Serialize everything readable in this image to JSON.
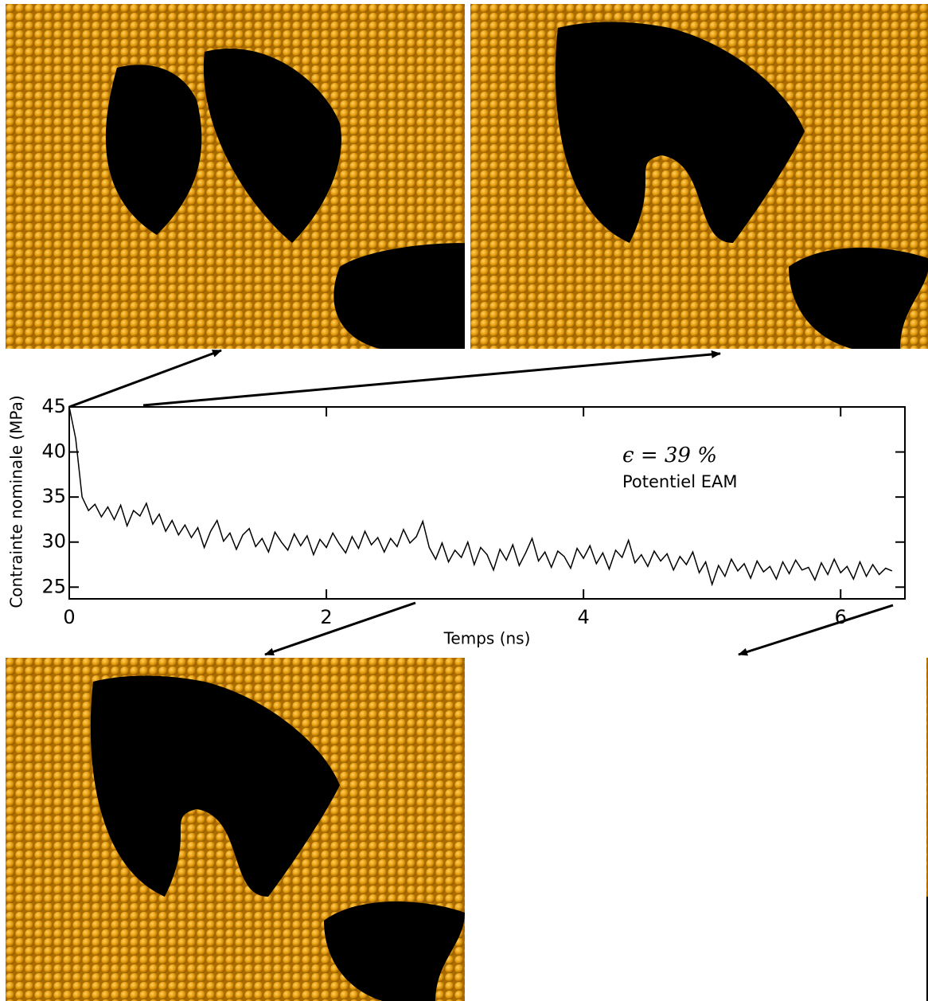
{
  "chart_data": {
    "type": "line",
    "x_label": "Temps (ns)",
    "y_label": "Contrainte nominale (MPa)",
    "annotations": [
      "ϵ = 39 %",
      "Potentiel EAM"
    ],
    "color": "#000000",
    "xlim": [
      0,
      6.5
    ],
    "xticks": [
      0,
      2,
      4,
      6
    ],
    "ylim": [
      23.7,
      45
    ],
    "yticks": [
      25,
      30,
      35,
      40,
      45
    ],
    "x": [
      0,
      0.05,
      0.1,
      0.15,
      0.2,
      0.25,
      0.3,
      0.35,
      0.4,
      0.45,
      0.5,
      0.55,
      0.6,
      0.65,
      0.7,
      0.75,
      0.8,
      0.85,
      0.9,
      0.95,
      1,
      1.05,
      1.1,
      1.15,
      1.2,
      1.25,
      1.3,
      1.35,
      1.4,
      1.45,
      1.5,
      1.55,
      1.6,
      1.65,
      1.7,
      1.75,
      1.8,
      1.85,
      1.9,
      1.95,
      2,
      2.05,
      2.1,
      2.15,
      2.2,
      2.25,
      2.3,
      2.35,
      2.4,
      2.45,
      2.5,
      2.55,
      2.6,
      2.65,
      2.7,
      2.75,
      2.8,
      2.85,
      2.9,
      2.95,
      3,
      3.05,
      3.1,
      3.15,
      3.2,
      3.25,
      3.3,
      3.35,
      3.4,
      3.45,
      3.5,
      3.55,
      3.6,
      3.65,
      3.7,
      3.75,
      3.8,
      3.85,
      3.9,
      3.95,
      4,
      4.05,
      4.1,
      4.15,
      4.2,
      4.25,
      4.3,
      4.35,
      4.4,
      4.45,
      4.5,
      4.55,
      4.6,
      4.65,
      4.7,
      4.75,
      4.8,
      4.85,
      4.9,
      4.95,
      5,
      5.05,
      5.1,
      5.15,
      5.2,
      5.25,
      5.3,
      5.35,
      5.4,
      5.45,
      5.5,
      5.55,
      5.6,
      5.65,
      5.7,
      5.75,
      5.8,
      5.85,
      5.9,
      5.95,
      6,
      6.05,
      6.1,
      6.15,
      6.2,
      6.25,
      6.3,
      6.35,
      6.4
    ],
    "values": [
      45.0,
      41.5,
      35.0,
      33.5,
      34.2,
      32.8,
      33.9,
      32.5,
      34.1,
      31.8,
      33.5,
      32.9,
      34.3,
      32.0,
      33.1,
      31.2,
      32.4,
      30.8,
      31.9,
      30.5,
      31.6,
      29.4,
      31.2,
      32.4,
      30.1,
      31.0,
      29.2,
      30.8,
      31.5,
      29.5,
      30.4,
      28.9,
      31.1,
      30.0,
      29.1,
      30.9,
      29.6,
      30.7,
      28.6,
      30.3,
      29.4,
      31.0,
      29.8,
      28.8,
      30.6,
      29.3,
      31.2,
      29.7,
      30.5,
      28.9,
      30.4,
      29.5,
      31.4,
      29.9,
      30.6,
      32.3,
      29.4,
      28.1,
      29.9,
      27.8,
      29.1,
      28.3,
      30.0,
      27.5,
      29.4,
      28.6,
      26.9,
      29.2,
      28.0,
      29.7,
      27.4,
      28.8,
      30.4,
      27.9,
      28.9,
      27.2,
      29.0,
      28.4,
      27.1,
      29.3,
      28.2,
      29.6,
      27.6,
      28.8,
      27.0,
      29.1,
      28.3,
      30.2,
      27.7,
      28.6,
      27.3,
      29.0,
      27.9,
      28.7,
      26.9,
      28.4,
      27.5,
      28.9,
      26.6,
      27.8,
      25.3,
      27.4,
      26.2,
      28.1,
      26.8,
      27.6,
      26.0,
      27.9,
      26.7,
      27.3,
      25.9,
      27.8,
      26.5,
      28.0,
      26.9,
      27.2,
      25.8,
      27.7,
      26.4,
      28.1,
      26.6,
      27.3,
      25.9,
      27.8,
      26.2,
      27.5,
      26.4,
      27.1,
      26.8
    ]
  }
}
